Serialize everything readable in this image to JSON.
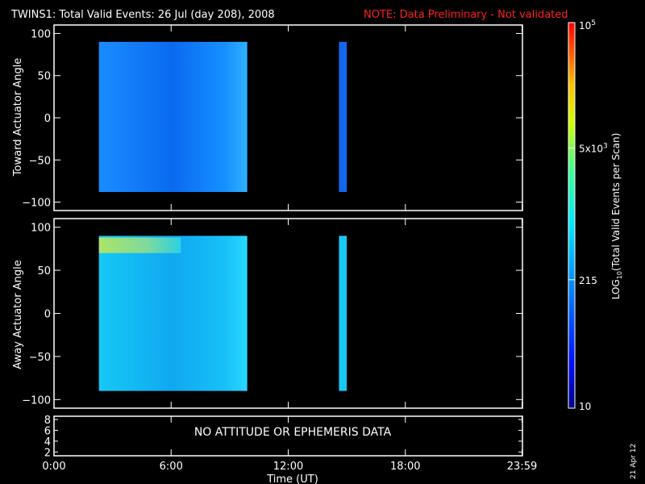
{
  "header": {
    "title": "TWINS1: Total Valid Events: 26 Jul (day 208), 2008",
    "note": "NOTE: Data Preliminary - Not validated",
    "note_color": "#ff2020"
  },
  "side_date": "21 Apr 12",
  "chart_data": [
    {
      "type": "heatmap",
      "name": "toward",
      "ylabel": "Toward Actuator Angle",
      "yticks": [
        -100,
        -50,
        0,
        50,
        100
      ],
      "ylim": [
        -110,
        110
      ],
      "xlim": [
        0,
        24
      ],
      "blocks": [
        {
          "x": [
            2.3,
            9.9
          ],
          "y": [
            -88,
            90
          ],
          "value": "~100-200 (blue)"
        },
        {
          "x": [
            14.6,
            15.0
          ],
          "y": [
            -88,
            90
          ],
          "value": "~50-80 (blue)"
        }
      ]
    },
    {
      "type": "heatmap",
      "name": "away",
      "ylabel": "Away Actuator Angle",
      "yticks": [
        -100,
        -50,
        0,
        50,
        100
      ],
      "ylim": [
        -110,
        110
      ],
      "xlim": [
        0,
        24
      ],
      "blocks": [
        {
          "x": [
            2.3,
            9.9
          ],
          "y": [
            -90,
            90
          ],
          "value": "~200-300 (cyan)"
        },
        {
          "x": [
            14.6,
            15.0
          ],
          "y": [
            -90,
            90
          ],
          "value": "~300 (cyan)"
        }
      ],
      "features": [
        {
          "x": [
            2.3,
            6.5
          ],
          "y": [
            70,
            88
          ],
          "value": "~2000-5000 (yellow-green band)"
        }
      ]
    },
    {
      "type": "table",
      "name": "ephemeris",
      "yticks": [
        2,
        4,
        6,
        8
      ],
      "message": "NO ATTITUDE OR EPHEMERIS DATA"
    }
  ],
  "x_axis": {
    "label": "Time (UT)",
    "ticks": [
      "0:00",
      "6:00",
      "12:00",
      "18:00",
      "23:59"
    ],
    "tick_hours": [
      0,
      6,
      12,
      18,
      23.98
    ]
  },
  "colorbar": {
    "label": "LOG",
    "label_sub": "10",
    "label_rest": "(Total Valid Events per Scan)",
    "ticks": [
      {
        "value": 100000,
        "base": "10",
        "exp": "5"
      },
      {
        "value": 5000,
        "base": "5x10",
        "exp": "3"
      },
      {
        "value": 215,
        "base": "215",
        "exp": ""
      },
      {
        "value": 10,
        "base": "10",
        "exp": ""
      }
    ],
    "range": [
      10,
      100000
    ]
  }
}
